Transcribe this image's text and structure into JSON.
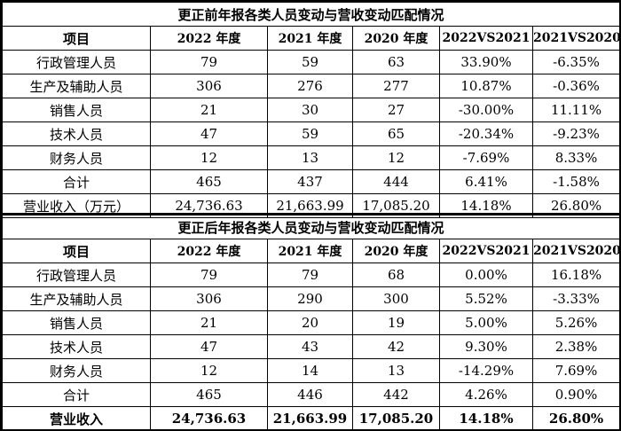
{
  "before": {
    "title": "更正前年报各类人员变动与营收变动匹配情况",
    "headers": [
      "项目",
      "2022 年度",
      "2021 年度",
      "2020 年度",
      "2022VS2021",
      "2021VS2020"
    ],
    "rows": [
      [
        "行政管理人员",
        "79",
        "59",
        "63",
        "33.90%",
        "-6.35%"
      ],
      [
        "生产及辅助人员",
        "306",
        "276",
        "277",
        "10.87%",
        "-0.36%"
      ],
      [
        "销售人员",
        "21",
        "30",
        "27",
        "-30.00%",
        "11.11%"
      ],
      [
        "技术人员",
        "47",
        "59",
        "65",
        "-20.34%",
        "-9.23%"
      ],
      [
        "财务人员",
        "12",
        "13",
        "12",
        "-7.69%",
        "8.33%"
      ],
      [
        "合计",
        "465",
        "437",
        "444",
        "6.41%",
        "-1.58%"
      ],
      [
        "营业收入（万元）",
        "24,736.63",
        "21,663.99",
        "17,085.20",
        "14.18%",
        "26.80%"
      ]
    ]
  },
  "after": {
    "title": "更正后年报各类人员变动与营收变动匹配情况",
    "headers": [
      "项目",
      "2022 年度",
      "2021 年度",
      "2020 年度",
      "2022VS2021",
      "2021VS2020"
    ],
    "rows": [
      [
        "行政管理人员",
        "79",
        "79",
        "68",
        "0.00%",
        "16.18%"
      ],
      [
        "生产及辅助人员",
        "306",
        "290",
        "300",
        "5.52%",
        "-3.33%"
      ],
      [
        "销售人员",
        "21",
        "20",
        "19",
        "5.00%",
        "5.26%"
      ],
      [
        "技术人员",
        "47",
        "43",
        "42",
        "9.30%",
        "2.38%"
      ],
      [
        "财务人员",
        "12",
        "14",
        "13",
        "-14.29%",
        "7.69%"
      ],
      [
        "合计",
        "465",
        "446",
        "442",
        "4.26%",
        "0.90%"
      ],
      [
        "营业收入",
        "24,736.63",
        "21,663.99",
        "17,085.20",
        "14.18%",
        "26.80%"
      ]
    ]
  }
}
